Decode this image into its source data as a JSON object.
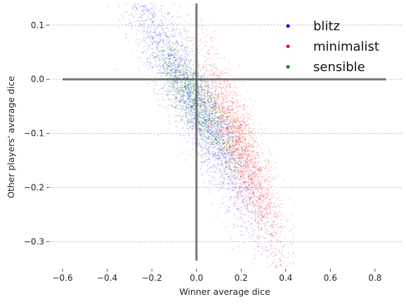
{
  "chart_data": {
    "type": "scatter",
    "title": "",
    "xlabel": "Winner average dice",
    "ylabel": "Other players' average dice",
    "xlim": [
      -0.66,
      0.92
    ],
    "ylim": [
      -0.35,
      0.14
    ],
    "xticks": [
      -0.6,
      -0.4,
      -0.2,
      0.0,
      0.2,
      0.4,
      0.6,
      0.8
    ],
    "xtick_labels": [
      "−0.6",
      "−0.4",
      "−0.2",
      "0.0",
      "0.2",
      "0.4",
      "0.6",
      "0.8"
    ],
    "yticks": [
      0.1,
      0.0,
      -0.1,
      -0.2,
      -0.3
    ],
    "ytick_labels": [
      "0.1",
      "0.0",
      "−0.1",
      "−0.2",
      "−0.3"
    ],
    "grid": "horizontal dashed",
    "legend_position": "top-right",
    "reference_lines": [
      {
        "orientation": "horizontal",
        "value": 0.0,
        "from": -0.6,
        "to": 0.85
      },
      {
        "orientation": "vertical",
        "value": 0.0,
        "from": -0.335,
        "to": 0.14
      }
    ],
    "series": [
      {
        "name": "blitz",
        "color": "#0000ff",
        "center": [
          0.0,
          -0.05
        ],
        "spread_along": 0.21,
        "spread_across": 0.038,
        "orientation": [
          1,
          -0.75
        ],
        "x_range_approx": [
          -0.35,
          0.45
        ],
        "y_range_approx": [
          -0.25,
          0.12
        ]
      },
      {
        "name": "minimalist",
        "color": "#ff0000",
        "center": [
          0.2,
          -0.13
        ],
        "spread_along": 0.13,
        "spread_across": 0.035,
        "orientation": [
          1,
          -1.0
        ],
        "x_range_approx": [
          -0.1,
          0.45
        ],
        "y_range_approx": [
          -0.33,
          0.05
        ]
      },
      {
        "name": "sensible",
        "color": "#008000",
        "center": [
          0.0,
          -0.04
        ],
        "spread_along": 0.12,
        "spread_across": 0.03,
        "orientation": [
          1,
          -0.55
        ],
        "x_range_approx": [
          -0.25,
          0.3
        ],
        "y_range_approx": [
          -0.17,
          0.05
        ]
      }
    ]
  }
}
